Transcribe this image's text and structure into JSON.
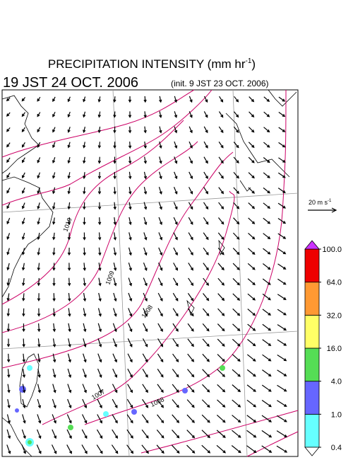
{
  "header": {
    "title": "PRECIPITATION INTENSITY (mm hr",
    "title_exponent": "-1",
    "title_close": ")",
    "valid_time": "19 JST 24 OCT. 2006",
    "init_time": "(init. 9 JST 23 OCT. 2006)"
  },
  "wind_scale": {
    "label": "20 m s",
    "exponent": "-1"
  },
  "colorbar": {
    "levels": [
      {
        "value": 0.4,
        "label": "0.4"
      },
      {
        "value": 1,
        "label": "1.0"
      },
      {
        "value": 4,
        "label": "4.0"
      },
      {
        "value": 16,
        "label": "16.0"
      },
      {
        "value": 32,
        "label": "32.0"
      },
      {
        "value": 64,
        "label": "64.0"
      },
      {
        "value": 100,
        "label": "100.0"
      }
    ],
    "colors": [
      "#66ffff",
      "#6666ff",
      "#55dd55",
      "#ffff66",
      "#ff9933",
      "#ee0000"
    ],
    "below_color": "#ffffff",
    "above_color": "#cc33ff"
  },
  "isobar_labels": [
    "1010",
    "1009",
    "1008",
    "1007",
    "1008"
  ]
}
